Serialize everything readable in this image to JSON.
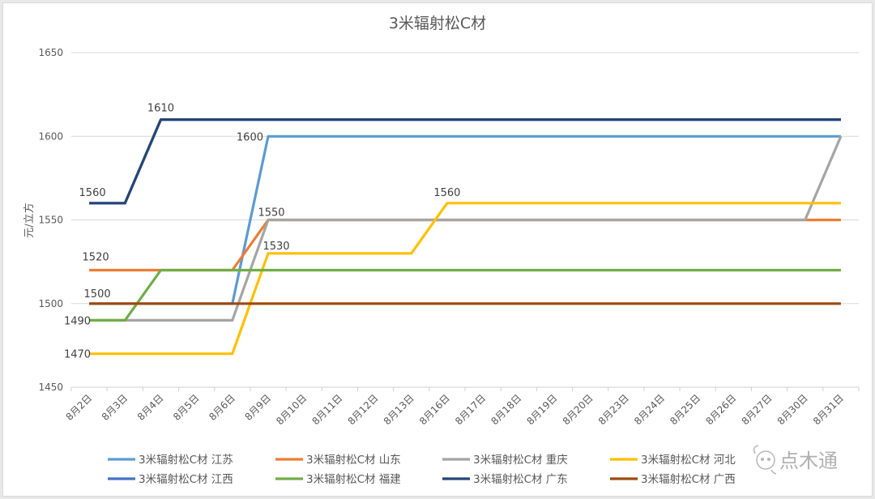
{
  "chart_data": {
    "type": "line",
    "title": "3米辐射松C材",
    "xlabel": "",
    "ylabel": "元/立方",
    "ylim": [
      1450,
      1650
    ],
    "yticks": [
      1450,
      1500,
      1550,
      1600,
      1650
    ],
    "grid": true,
    "legend_position": "bottom",
    "categories": [
      "8月2日",
      "8月3日",
      "8月4日",
      "8月5日",
      "8月6日",
      "8月9日",
      "8月10日",
      "8月11日",
      "8月12日",
      "8月13日",
      "8月16日",
      "8月17日",
      "8月18日",
      "8月19日",
      "8月20日",
      "8月23日",
      "8月24日",
      "8月25日",
      "8月26日",
      "8月27日",
      "8月30日",
      "8月31日"
    ],
    "series": [
      {
        "name": "3米辐射松C材 江苏",
        "color": "#5B9BD5",
        "values": [
          1500,
          1500,
          1500,
          1500,
          1500,
          1600,
          1600,
          1600,
          1600,
          1600,
          1600,
          1600,
          1600,
          1600,
          1600,
          1600,
          1600,
          1600,
          1600,
          1600,
          1600,
          1600
        ]
      },
      {
        "name": "3米辐射松C材 山东",
        "color": "#ED7D31",
        "values": [
          1520,
          1520,
          1520,
          1520,
          1520,
          1550,
          1550,
          1550,
          1550,
          1550,
          1550,
          1550,
          1550,
          1550,
          1550,
          1550,
          1550,
          1550,
          1550,
          1550,
          1550,
          1550
        ]
      },
      {
        "name": "3米辐射松C材 重庆",
        "color": "#A5A5A5",
        "values": [
          1490,
          1490,
          1490,
          1490,
          1490,
          1550,
          1550,
          1550,
          1550,
          1550,
          1550,
          1550,
          1550,
          1550,
          1550,
          1550,
          1550,
          1550,
          1550,
          1550,
          1550,
          1600
        ]
      },
      {
        "name": "3米辐射松C材 河北",
        "color": "#FFC000",
        "values": [
          1470,
          1470,
          1470,
          1470,
          1470,
          1530,
          1530,
          1530,
          1530,
          1530,
          1560,
          1560,
          1560,
          1560,
          1560,
          1560,
          1560,
          1560,
          1560,
          1560,
          1560,
          1560
        ]
      },
      {
        "name": "3米辐射松C材 江西",
        "color": "#4472C4",
        "values": [
          1560,
          1560,
          1610,
          1610,
          1610,
          1610,
          1610,
          1610,
          1610,
          1610,
          1610,
          1610,
          1610,
          1610,
          1610,
          1610,
          1610,
          1610,
          1610,
          1610,
          1610,
          1610
        ]
      },
      {
        "name": "3米辐射松C材 福建",
        "color": "#70AD47",
        "values": [
          1490,
          1490,
          1520,
          1520,
          1520,
          1520,
          1520,
          1520,
          1520,
          1520,
          1520,
          1520,
          1520,
          1520,
          1520,
          1520,
          1520,
          1520,
          1520,
          1520,
          1520,
          1520
        ]
      },
      {
        "name": "3米辐射松C材 广东",
        "color": "#264478",
        "values": [
          1560,
          1560,
          1610,
          1610,
          1610,
          1610,
          1610,
          1610,
          1610,
          1610,
          1610,
          1610,
          1610,
          1610,
          1610,
          1610,
          1610,
          1610,
          1610,
          1610,
          1610,
          1610
        ]
      },
      {
        "name": "3米辐射松C材 广西",
        "color": "#9E480E",
        "values": [
          1500,
          1500,
          1500,
          1500,
          1500,
          1500,
          1500,
          1500,
          1500,
          1500,
          1500,
          1500,
          1500,
          1500,
          1500,
          1500,
          1500,
          1500,
          1500,
          1500,
          1500,
          1500
        ]
      }
    ],
    "annotations": [
      {
        "text": "1610",
        "category": "8月4日",
        "value": 1610
      },
      {
        "text": "1600",
        "category": "8月9日",
        "value": 1600
      },
      {
        "text": "1560",
        "category": "8月2日",
        "value": 1560
      },
      {
        "text": "1560",
        "category": "8月16日",
        "value": 1560
      },
      {
        "text": "1550",
        "category": "8月9日",
        "value": 1550
      },
      {
        "text": "1530",
        "category": "8月9日",
        "value": 1530
      },
      {
        "text": "1520",
        "category": "8月2日",
        "value": 1520
      },
      {
        "text": "1500",
        "category": "8月2日",
        "value": 1500
      },
      {
        "text": "1490",
        "category": "8月2日",
        "value": 1490
      },
      {
        "text": "1470",
        "category": "8月2日",
        "value": 1470
      }
    ]
  },
  "watermark": {
    "text": "点木通",
    "icon": "wechat-icon"
  }
}
